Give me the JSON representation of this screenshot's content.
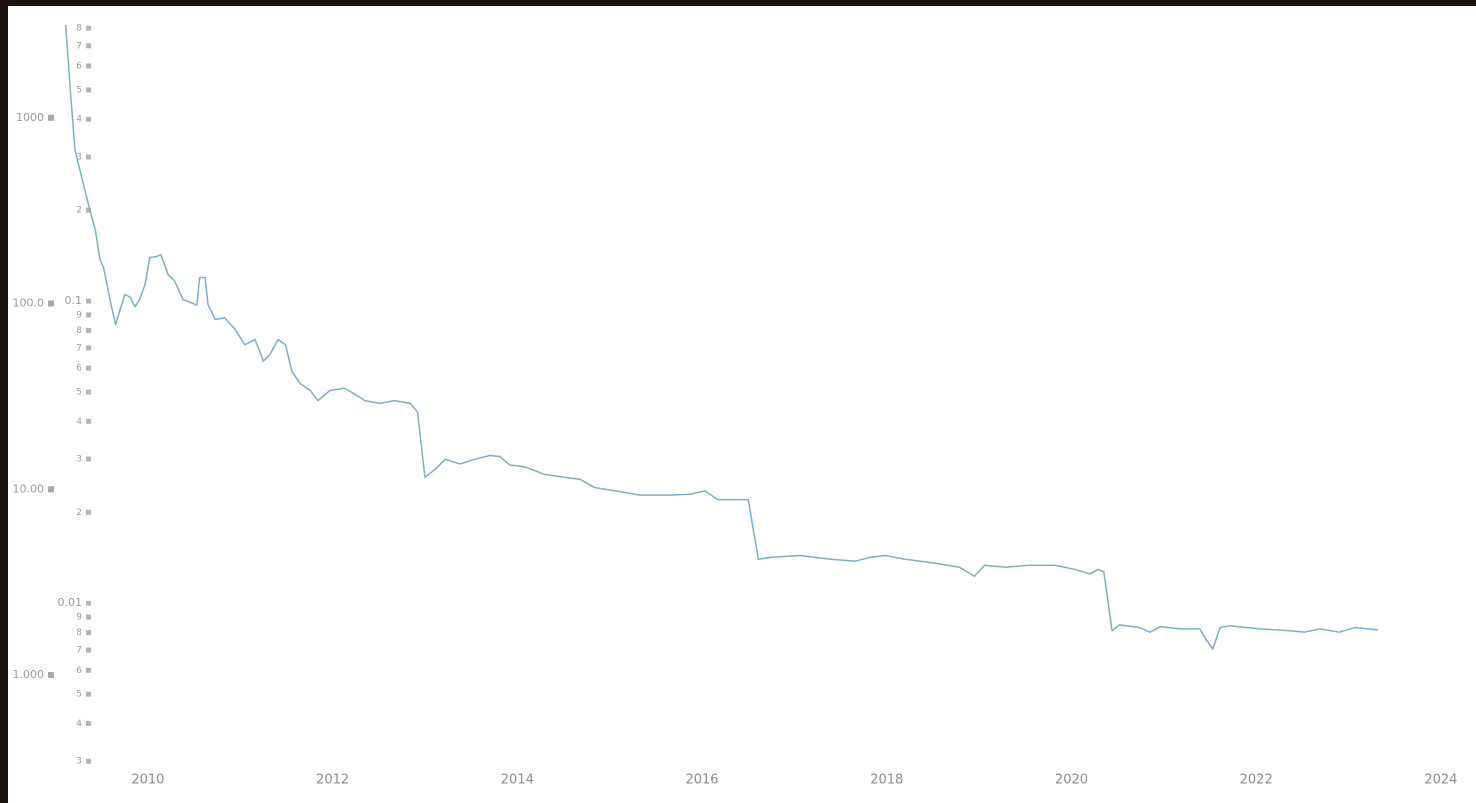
{
  "chart_data": {
    "type": "line",
    "log_scale": true,
    "line_color": "#7aadd4",
    "xlim": [
      2009.07,
      2024.38
    ],
    "xticks": [
      2010,
      2012,
      2014,
      2016,
      2018,
      2020,
      2022,
      2024
    ],
    "ylim": [
      0.272,
      3160
    ],
    "yticks": [
      1000,
      {
        "value": 100,
        "label": "100.0"
      },
      {
        "value": 10,
        "label": "10.00"
      },
      {
        "value": 1,
        "label": "1.000"
      }
    ],
    "y2lim": [
      0.0026,
      0.82
    ],
    "y2ticks": [
      {
        "value": 0.8,
        "label": "8"
      },
      {
        "value": 0.7,
        "label": "7"
      },
      {
        "value": 0.6,
        "label": "6"
      },
      {
        "value": 0.5,
        "label": "5"
      },
      {
        "value": 0.4,
        "label": "4"
      },
      {
        "value": 0.3,
        "label": "3"
      },
      {
        "value": 0.2,
        "label": "2"
      },
      0.1,
      {
        "value": 0.09,
        "label": "9"
      },
      {
        "value": 0.08,
        "label": "8"
      },
      {
        "value": 0.07,
        "label": "7"
      },
      {
        "value": 0.06,
        "label": "6"
      },
      {
        "value": 0.05,
        "label": "5"
      },
      {
        "value": 0.04,
        "label": "4"
      },
      {
        "value": 0.03,
        "label": "3"
      },
      {
        "value": 0.02,
        "label": "2"
      },
      0.01,
      {
        "value": 0.009,
        "label": "9"
      },
      {
        "value": 0.008,
        "label": "8"
      },
      {
        "value": 0.007,
        "label": "7"
      },
      {
        "value": 0.006,
        "label": "6"
      },
      {
        "value": 0.005,
        "label": "5"
      },
      {
        "value": 0.004,
        "label": "4"
      },
      {
        "value": 0.003,
        "label": "3"
      }
    ],
    "x": [
      2009.11,
      2009.16,
      2009.21,
      2009.29,
      2009.37,
      2009.43,
      2009.48,
      2009.52,
      2009.59,
      2009.65,
      2009.7,
      2009.75,
      2009.81,
      2009.86,
      2009.91,
      2009.97,
      2010.02,
      2010.09,
      2010.14,
      2010.22,
      2010.29,
      2010.38,
      2010.45,
      2010.53,
      2010.56,
      2010.62,
      2010.65,
      2010.73,
      2010.83,
      2010.94,
      2011.05,
      2011.16,
      2011.25,
      2011.32,
      2011.41,
      2011.49,
      2011.56,
      2011.65,
      2011.76,
      2011.84,
      2011.97,
      2012.13,
      2012.24,
      2012.35,
      2012.51,
      2012.67,
      2012.84,
      2012.92,
      2013.0,
      2013.11,
      2013.22,
      2013.38,
      2013.54,
      2013.7,
      2013.81,
      2013.92,
      2014.08,
      2014.3,
      2014.51,
      2014.68,
      2014.84,
      2015.06,
      2015.33,
      2015.65,
      2015.87,
      2016.03,
      2016.17,
      2016.5,
      2016.61,
      2016.74,
      2017.06,
      2017.39,
      2017.66,
      2017.82,
      2017.98,
      2018.2,
      2018.52,
      2018.79,
      2018.95,
      2019.06,
      2019.28,
      2019.55,
      2019.82,
      2020.04,
      2020.2,
      2020.29,
      2020.35,
      2020.44,
      2020.52,
      2020.74,
      2020.85,
      2020.96,
      2021.17,
      2021.39,
      2021.44,
      2021.53,
      2021.61,
      2021.71,
      2022.04,
      2022.36,
      2022.52,
      2022.69,
      2022.9,
      2023.07,
      2023.32
    ],
    "values": [
      3162,
      1414,
      673,
      464,
      320,
      250,
      173,
      156,
      105,
      77,
      93,
      112,
      108,
      96,
      105,
      127,
      177,
      179,
      183,
      143,
      132,
      105,
      102,
      98,
      138,
      138,
      99,
      82,
      84,
      73,
      60,
      64,
      49,
      53,
      64,
      60,
      43,
      37,
      34,
      30,
      34,
      35,
      32.5,
      30,
      29,
      30,
      29,
      26,
      11.6,
      12.8,
      14.5,
      13.7,
      14.5,
      15.2,
      15,
      13.5,
      13.2,
      12,
      11.6,
      11.3,
      10.2,
      9.8,
      9.3,
      9.3,
      9.4,
      9.8,
      8.8,
      8.8,
      4.2,
      4.3,
      4.4,
      4.2,
      4.1,
      4.3,
      4.4,
      4.2,
      4.0,
      3.8,
      3.4,
      3.9,
      3.8,
      3.9,
      3.9,
      3.7,
      3.5,
      3.7,
      3.6,
      1.73,
      1.86,
      1.8,
      1.7,
      1.82,
      1.77,
      1.77,
      1.6,
      1.38,
      1.8,
      1.84,
      1.77,
      1.73,
      1.7,
      1.77,
      1.7,
      1.8,
      1.75
    ]
  }
}
